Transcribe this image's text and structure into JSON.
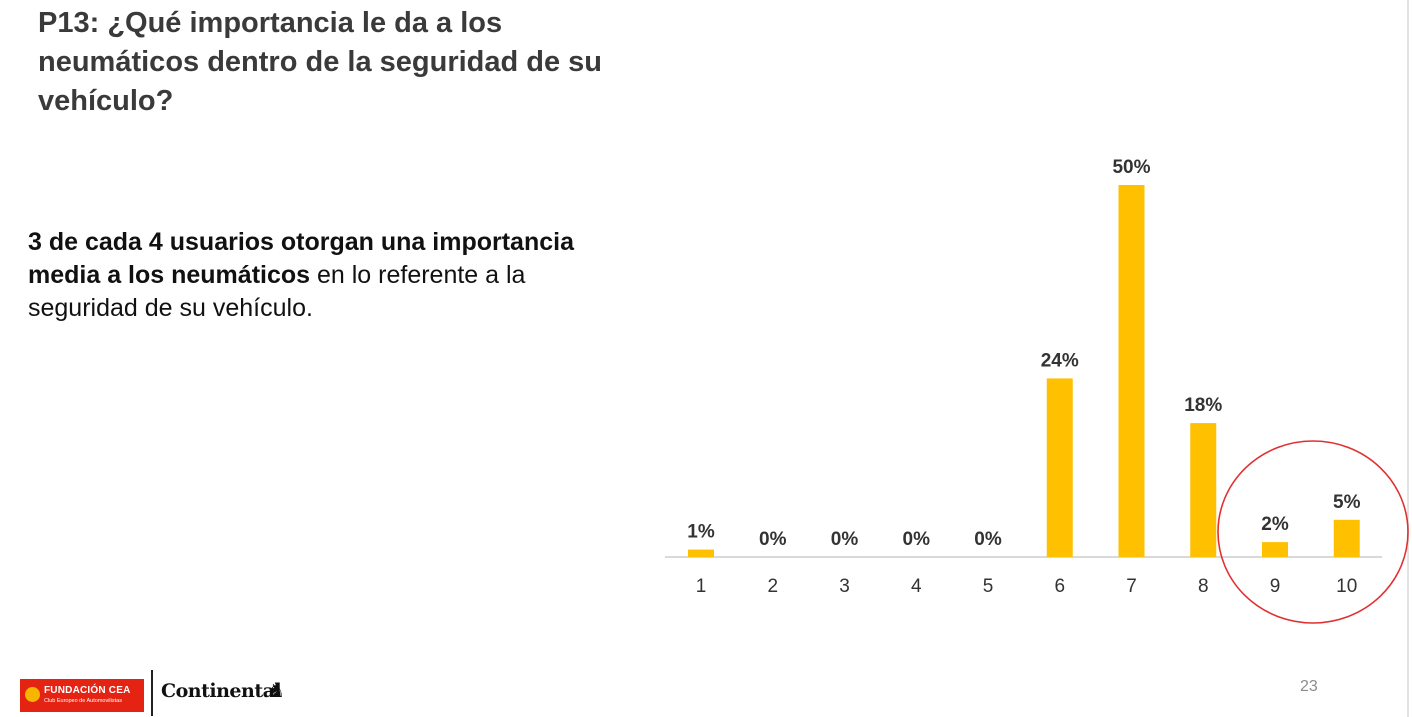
{
  "title": "P13: ¿Qué importancia le da a los neumáticos dentro de la seguridad de su vehículo?",
  "summary": {
    "bold": "3 de cada 4 usuarios otorgan una importancia media a los neumáticos",
    "normal": " en lo referente a la seguridad de su vehículo."
  },
  "chart_data": {
    "type": "bar",
    "title": "",
    "xlabel": "",
    "ylabel": "",
    "categories": [
      "1",
      "2",
      "3",
      "4",
      "5",
      "6",
      "7",
      "8",
      "9",
      "10"
    ],
    "values": [
      1,
      0,
      0,
      0,
      0,
      24,
      50,
      18,
      2,
      5
    ],
    "data_labels": [
      "1%",
      "0%",
      "0%",
      "0%",
      "0%",
      "24%",
      "50%",
      "18%",
      "2%",
      "5%"
    ],
    "unit": "%",
    "ylim": [
      0,
      50
    ],
    "grid": false,
    "legend": "none",
    "bar_color": "#FFC000",
    "axis_color": "#d9d9d9",
    "highlight": {
      "categories": [
        "9",
        "10"
      ],
      "shape": "circle",
      "color": "#e03030"
    }
  },
  "footer": {
    "logo_cea_name": "FUNDACIÓN CEA",
    "logo_cea_sub": "Club Europeo de Automovilistas",
    "logo_continental": "Continental",
    "page_number": "23"
  }
}
